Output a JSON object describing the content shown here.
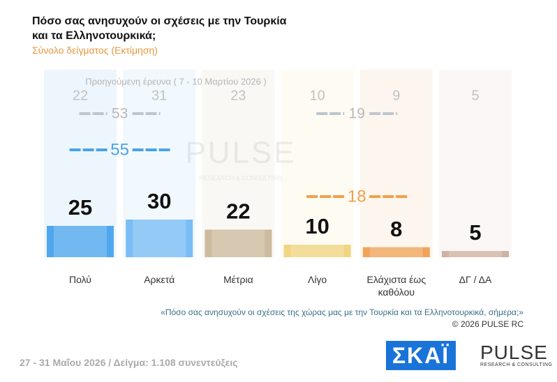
{
  "chart_data": {
    "type": "bar",
    "title": [
      "Πόσο σας ανησυχούν οι σχέσεις με την Τουρκία",
      "και τα Ελληνοτουρκικά;"
    ],
    "subtitle": "Σύνολο δείγματος (Εκτίμηση)",
    "categories": [
      "Πολύ",
      "Αρκετά",
      "Μέτρια",
      "Λίγο",
      "Ελάχιστα έως καθόλου",
      "ΔΓ / ΔΑ"
    ],
    "values": [
      25,
      30,
      22,
      10,
      8,
      5
    ],
    "colors": [
      "#4fa8ee",
      "#79bdf4",
      "#cdbb9f",
      "#f1d583",
      "#f0a45a",
      "#cdb3a2"
    ],
    "previous": {
      "label": "Προηγούμενη έρευνα ( 7 - 10 Μαρτίου 2026 )",
      "values": [
        22,
        31,
        23,
        10,
        9,
        5
      ]
    },
    "totals": [
      {
        "value": 55,
        "previous": 53,
        "color": "#4aa3e6"
      },
      {
        "value": 18,
        "previous": 19,
        "color": "#f0a04b"
      }
    ],
    "note": "«Πόσο σας ανησυχούν οι σχέσεις της χώρας μας με την Τουρκία και τα Ελληνοτουρκικά, σήμερα;»",
    "copyright": "©  2026  PULSE RC",
    "footer": "27 - 31  Μαΐου 2026  /  Δείγμα:  1.108 συνεντεύξεις",
    "logos": {
      "skai": "ΣΚΑΪ",
      "pulse": "PULSE",
      "pulse_tagline": "RESEARCH & CONSULTING"
    }
  }
}
